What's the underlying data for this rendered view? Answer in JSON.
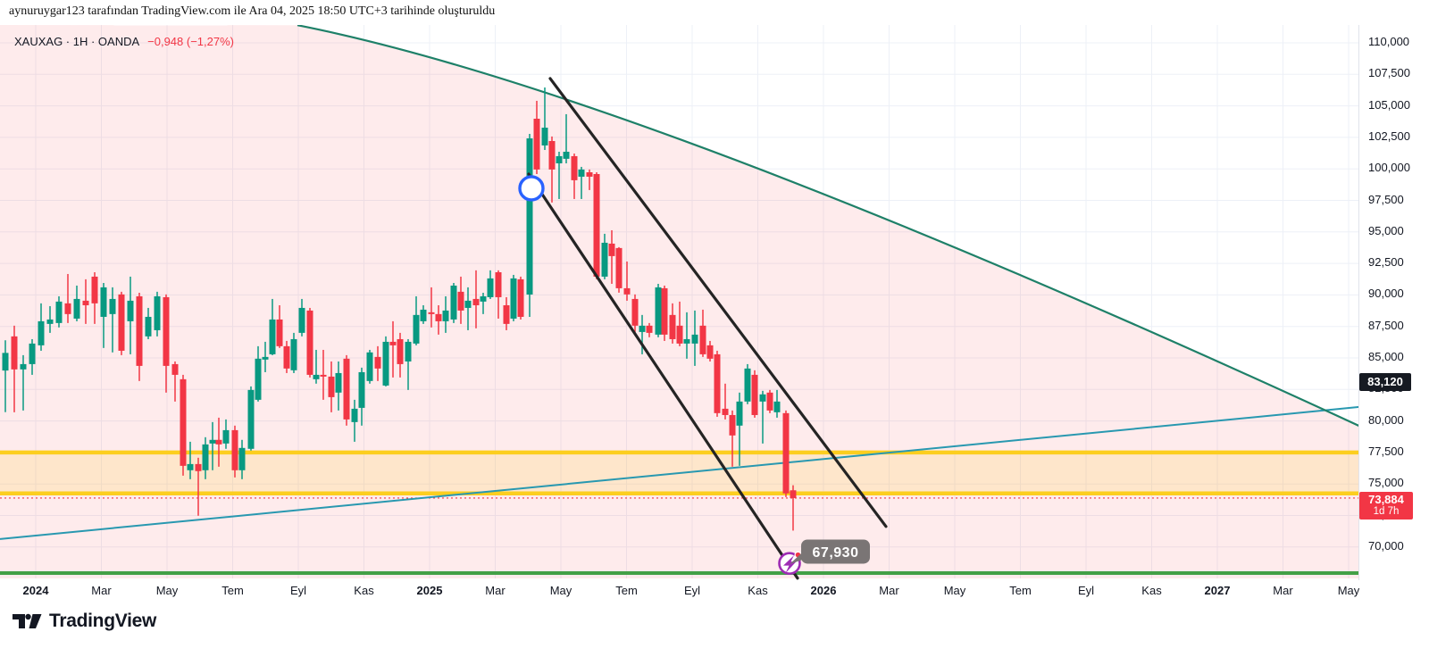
{
  "attribution": "aynuruygar123 tarafından TradingView.com ile Ara 04, 2025 18:50 UTC+3 tarihinde oluşturuldu",
  "legend": {
    "title": "XAUXAG · 1H · OANDA",
    "change": "−0,948 (−1,27%)"
  },
  "footer": {
    "logo_text": "TradingView"
  },
  "price_axis": {
    "ticks": [
      {
        "v": 110000,
        "t": "110,000"
      },
      {
        "v": 107500,
        "t": "107,500"
      },
      {
        "v": 105000,
        "t": "105,000"
      },
      {
        "v": 102500,
        "t": "102,500"
      },
      {
        "v": 100000,
        "t": "100,000"
      },
      {
        "v": 97500,
        "t": "97,500"
      },
      {
        "v": 95000,
        "t": "95,000"
      },
      {
        "v": 92500,
        "t": "92,500"
      },
      {
        "v": 90000,
        "t": "90,000"
      },
      {
        "v": 87500,
        "t": "87,500"
      },
      {
        "v": 85000,
        "t": "85,000"
      },
      {
        "v": 82500,
        "t": "82,500"
      },
      {
        "v": 80000,
        "t": "80,000"
      },
      {
        "v": 77500,
        "t": "77,500"
      },
      {
        "v": 75000,
        "t": "75,000"
      },
      {
        "v": 72500,
        "t": "72,500"
      },
      {
        "v": 70000,
        "t": "70,000"
      }
    ],
    "dark_badge": {
      "value": 83120,
      "label": "83,120",
      "bg": "#161a22"
    },
    "last_badge": {
      "value": 73884,
      "label": "73,884",
      "countdown": "1d 7h",
      "bg": "#f23645"
    }
  },
  "time_axis": {
    "labels": [
      {
        "t": "2024",
        "bold": true
      },
      {
        "t": "Mar"
      },
      {
        "t": "May"
      },
      {
        "t": "Tem"
      },
      {
        "t": "Eyl"
      },
      {
        "t": "Kas"
      },
      {
        "t": "2025",
        "bold": true
      },
      {
        "t": "Mar"
      },
      {
        "t": "May"
      },
      {
        "t": "Tem"
      },
      {
        "t": "Eyl"
      },
      {
        "t": "Kas"
      },
      {
        "t": "2026",
        "bold": true
      },
      {
        "t": "Mar"
      },
      {
        "t": "May"
      },
      {
        "t": "Tem"
      },
      {
        "t": "Eyl"
      },
      {
        "t": "Kas"
      },
      {
        "t": "2027",
        "bold": true
      },
      {
        "t": "Mar"
      },
      {
        "t": "May"
      }
    ]
  },
  "chart_data": {
    "type": "candlestick",
    "title": "XAUXAG 1H OANDA",
    "ylim": [
      67500,
      111500
    ],
    "grid": true,
    "y_ticks_step": 2500,
    "candles_note": "each item = [x_px, open, high, low, close]",
    "candles": [
      [
        6,
        84000,
        86400,
        80700,
        85400
      ],
      [
        16,
        86710,
        87560,
        80690,
        84090
      ],
      [
        26,
        84090,
        85220,
        80830,
        84510
      ],
      [
        36,
        84510,
        86490,
        83660,
        86140
      ],
      [
        46,
        86000,
        89330,
        85570,
        87910
      ],
      [
        56,
        87700,
        89110,
        86990,
        88050
      ],
      [
        66,
        87770,
        89890,
        87420,
        89470
      ],
      [
        76,
        89330,
        91660,
        87770,
        88480
      ],
      [
        86,
        88120,
        90740,
        87910,
        89680
      ],
      [
        96,
        89540,
        91240,
        87700,
        89180
      ],
      [
        106,
        91450,
        91800,
        87700,
        89330
      ],
      [
        116,
        88260,
        90950,
        85790,
        90600
      ],
      [
        126,
        88480,
        90600,
        85440,
        89680
      ],
      [
        136,
        90040,
        90250,
        85220,
        85570
      ],
      [
        146,
        87910,
        91450,
        85290,
        89540
      ],
      [
        156,
        89890,
        90170,
        83170,
        84370
      ],
      [
        166,
        86710,
        88970,
        86490,
        88260
      ],
      [
        176,
        87200,
        90250,
        86710,
        89890
      ],
      [
        186,
        89820,
        90040,
        82250,
        84370
      ],
      [
        196,
        84510,
        84720,
        81540,
        83660
      ],
      [
        205,
        83310,
        83660,
        75660,
        76440
      ],
      [
        213,
        76090,
        78350,
        75380,
        76580
      ],
      [
        222,
        76580,
        77080,
        72480,
        76020
      ],
      [
        230,
        76090,
        78710,
        75380,
        78140
      ],
      [
        238,
        78210,
        79910,
        76090,
        78500
      ],
      [
        245,
        78500,
        80260,
        76370,
        78140
      ],
      [
        253,
        78210,
        80120,
        77790,
        79270
      ],
      [
        263,
        79270,
        79630,
        75520,
        76090
      ],
      [
        271,
        76090,
        78500,
        75380,
        77860
      ],
      [
        281,
        77790,
        82740,
        77650,
        82460
      ],
      [
        289,
        81680,
        85930,
        81540,
        84940
      ],
      [
        297,
        84870,
        86280,
        83870,
        85080
      ],
      [
        305,
        85290,
        89680,
        85220,
        88050
      ],
      [
        313,
        88050,
        89180,
        85790,
        85930
      ],
      [
        321,
        85930,
        86350,
        83800,
        84160
      ],
      [
        329,
        84020,
        86990,
        83800,
        86490
      ],
      [
        338,
        86990,
        89680,
        86710,
        88970
      ],
      [
        347,
        88760,
        88970,
        83450,
        83660
      ],
      [
        354,
        83310,
        85640,
        82960,
        83660
      ],
      [
        362,
        83660,
        85640,
        81680,
        83520
      ],
      [
        371,
        83520,
        84720,
        80690,
        81890
      ],
      [
        379,
        82250,
        84720,
        80830,
        83800
      ],
      [
        388,
        84940,
        85220,
        79630,
        80120
      ],
      [
        397,
        79910,
        81680,
        78350,
        80970
      ],
      [
        405,
        81040,
        84230,
        79630,
        83870
      ],
      [
        414,
        83170,
        85640,
        82960,
        85440
      ],
      [
        423,
        85080,
        85930,
        83170,
        84160
      ],
      [
        432,
        82810,
        86710,
        82740,
        86280
      ],
      [
        440,
        86280,
        87910,
        83450,
        86000
      ],
      [
        448,
        86490,
        86990,
        83450,
        84510
      ],
      [
        457,
        84720,
        86490,
        82460,
        86280
      ],
      [
        466,
        86140,
        89890,
        86000,
        88410
      ],
      [
        474,
        87910,
        89180,
        87700,
        88830
      ],
      [
        483,
        88620,
        90600,
        87420,
        88480
      ],
      [
        491,
        88480,
        89180,
        86850,
        87910
      ],
      [
        499,
        87910,
        89890,
        86990,
        88760
      ],
      [
        508,
        88050,
        90950,
        87770,
        90740
      ],
      [
        516,
        90250,
        91450,
        87700,
        88760
      ],
      [
        524,
        88970,
        90600,
        87200,
        89540
      ],
      [
        533,
        89680,
        91950,
        87350,
        89180
      ],
      [
        541,
        89470,
        90170,
        88480,
        89890
      ],
      [
        549,
        89820,
        91950,
        89680,
        91310
      ],
      [
        558,
        91800,
        91950,
        88120,
        89820
      ],
      [
        567,
        89180,
        89820,
        87200,
        87700
      ],
      [
        575,
        88120,
        91590,
        87910,
        91310
      ],
      [
        583,
        91240,
        91450,
        88050,
        88260
      ],
      [
        593,
        90030,
        102780,
        88260,
        102420
      ],
      [
        601,
        103980,
        105400,
        99590,
        99950
      ],
      [
        610,
        101860,
        106460,
        101500,
        103270
      ],
      [
        618,
        102210,
        102570,
        97330,
        99950
      ],
      [
        626,
        100440,
        101360,
        97610,
        101010
      ],
      [
        634,
        100800,
        104340,
        100440,
        101360
      ],
      [
        643,
        101010,
        101220,
        97610,
        99100
      ],
      [
        651,
        99380,
        100160,
        97610,
        99950
      ],
      [
        660,
        99730,
        99950,
        98320,
        99380
      ],
      [
        668,
        99590,
        99730,
        91240,
        91450
      ],
      [
        677,
        91450,
        94850,
        91240,
        94140
      ],
      [
        685,
        94070,
        95130,
        90880,
        93080
      ],
      [
        693,
        93720,
        93790,
        90180,
        90530
      ],
      [
        702,
        90530,
        92650,
        89540,
        90040
      ],
      [
        711,
        89680,
        90040,
        87060,
        87560
      ],
      [
        719,
        87060,
        88410,
        85290,
        87560
      ],
      [
        727,
        87560,
        87770,
        86640,
        86990
      ],
      [
        737,
        86850,
        90880,
        86640,
        90600
      ],
      [
        744,
        90530,
        90740,
        86350,
        86850
      ],
      [
        753,
        88410,
        89330,
        86140,
        86490
      ],
      [
        761,
        87560,
        89470,
        85930,
        86140
      ],
      [
        769,
        86140,
        88620,
        84940,
        86490
      ],
      [
        778,
        86140,
        88760,
        84370,
        86850
      ],
      [
        787,
        87560,
        88830,
        85080,
        85290
      ],
      [
        795,
        86000,
        86350,
        84720,
        84940
      ],
      [
        803,
        85290,
        85570,
        80330,
        80620
      ],
      [
        812,
        80970,
        82960,
        80120,
        80470
      ],
      [
        820,
        80470,
        80830,
        76370,
        78850
      ],
      [
        828,
        79630,
        82250,
        76440,
        81540
      ],
      [
        837,
        81540,
        84510,
        81330,
        84160
      ],
      [
        845,
        83660,
        84020,
        80260,
        80470
      ],
      [
        854,
        81540,
        82390,
        78210,
        82110
      ],
      [
        862,
        82250,
        82460,
        80620,
        80830
      ],
      [
        870,
        80690,
        82460,
        80260,
        81540
      ],
      [
        880,
        80620,
        80830,
        73960,
        74250
      ],
      [
        888,
        74500,
        74900,
        71300,
        73884
      ]
    ],
    "lines": {
      "descending_resistance": {
        "points": [
          [
            333,
            111400
          ],
          [
            820,
            100800
          ],
          [
            1522,
            79600
          ]
        ],
        "color": "#1e8068",
        "fill_below": "rgba(242,54,69,0.10)"
      },
      "channel_left": {
        "points": [
          [
            592,
            99590
          ],
          [
            893,
            67520
          ]
        ],
        "color": "#242424"
      },
      "channel_right": {
        "points": [
          [
            616,
            107170
          ],
          [
            992,
            71630
          ]
        ],
        "color": "#242424"
      },
      "ascending_support": {
        "points": [
          [
            0,
            70630
          ],
          [
            1522,
            81110
          ]
        ],
        "color": "#2898b0"
      },
      "zone_band": {
        "top": 77500,
        "bottom": 74250,
        "line_color": "#fcce1f",
        "fill": "rgba(253,211,53,0.18)"
      },
      "current_price_line": {
        "value": 73884,
        "color": "#f23645"
      },
      "support_line": {
        "value": 67930,
        "color": "#43a047"
      }
    },
    "annotations": {
      "entry_circle": {
        "x": 595,
        "price": 98460,
        "color": "#2962ff"
      },
      "alert_icon": {
        "x": 884,
        "price": 68700,
        "ring_color": "#9e2cb4",
        "dot_color": "#f23645"
      },
      "alert_callout": {
        "text": "67,930",
        "x": 897,
        "price": 69600,
        "bg": "#7a7575"
      }
    },
    "colors": {
      "up": "#089981",
      "down": "#f23645",
      "grid": "#edf0f7",
      "area_tint": "rgba(242,54,69,0.10)"
    }
  }
}
